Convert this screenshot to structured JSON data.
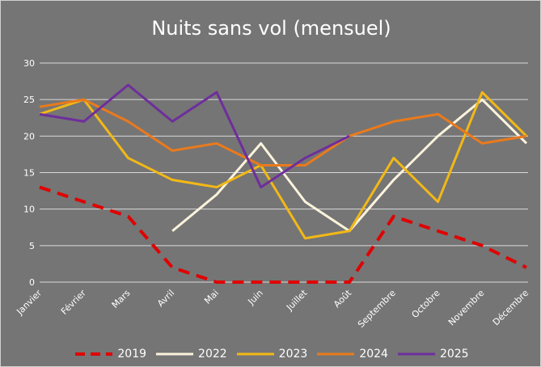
{
  "chart_data": {
    "type": "line",
    "title": "Nuits sans vol (mensuel)",
    "xlabel": "",
    "ylabel": "",
    "ylim": [
      0,
      30
    ],
    "yticks": [
      0,
      5,
      10,
      15,
      20,
      25,
      30
    ],
    "grid": true,
    "legend_position": "bottom",
    "categories": [
      "Janvier",
      "Février",
      "Mars",
      "Avril",
      "Mai",
      "Juin",
      "Juillet",
      "Août",
      "Septembre",
      "Octobre",
      "Novembre",
      "Décembre"
    ],
    "series": [
      {
        "name": "2019",
        "color": "#e00000",
        "dashed": true,
        "values": [
          13,
          11,
          9,
          2,
          0,
          0,
          0,
          0,
          9,
          7,
          5,
          2
        ]
      },
      {
        "name": "2022",
        "color": "#fbf3dc",
        "dashed": false,
        "values": [
          null,
          null,
          null,
          7,
          12,
          19,
          11,
          7,
          14,
          20,
          25,
          19
        ]
      },
      {
        "name": "2023",
        "color": "#f2b817",
        "dashed": false,
        "values": [
          23,
          25,
          17,
          14,
          13,
          16,
          6,
          7,
          17,
          11,
          26,
          20
        ]
      },
      {
        "name": "2024",
        "color": "#ea7a1c",
        "dashed": false,
        "values": [
          24,
          25,
          22,
          18,
          19,
          16,
          16,
          20,
          22,
          23,
          19,
          20
        ]
      },
      {
        "name": "2025",
        "color": "#6e2e9c",
        "dashed": false,
        "values": [
          23,
          22,
          27,
          22,
          26,
          13,
          17,
          20,
          null,
          null,
          null,
          null
        ]
      }
    ]
  }
}
